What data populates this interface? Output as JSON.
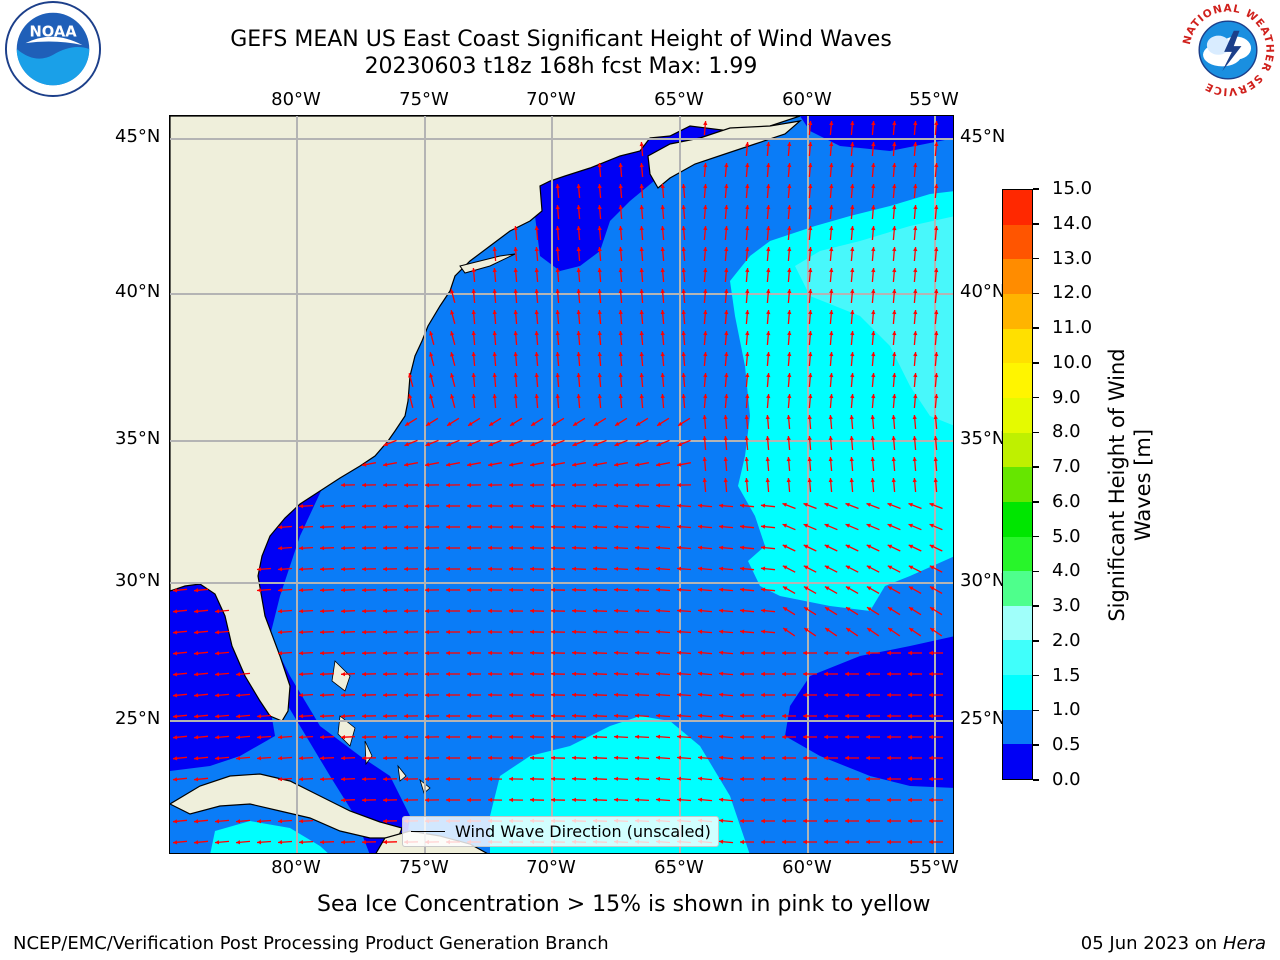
{
  "title_line1": "GEFS MEAN US East Coast Significant Height of Wind Waves",
  "title_line2": "20230603 t18z 168h fcst   Max: 1.99",
  "lon_labels": [
    "80°W",
    "75°W",
    "70°W",
    "65°W",
    "60°W",
    "55°W"
  ],
  "lat_labels": [
    "45°N",
    "40°N",
    "35°N",
    "30°N",
    "25°N"
  ],
  "colorbar": {
    "label": "Significant Height of Wind Waves [m]",
    "ticks": [
      "0.0",
      "0.5",
      "1.0",
      "1.5",
      "2.0",
      "3.0",
      "4.0",
      "5.0",
      "6.0",
      "7.0",
      "8.0",
      "9.0",
      "10.0",
      "11.0",
      "12.0",
      "13.0",
      "14.0",
      "15.0"
    ],
    "colors": [
      "#0000f5",
      "#0a7cf7",
      "#00ffff",
      "#40fffb",
      "#a0fffa",
      "#4eff8c",
      "#28f52a",
      "#00e600",
      "#66e600",
      "#bff000",
      "#e5fa00",
      "#fff500",
      "#ffe000",
      "#ffb400",
      "#ff8c00",
      "#ff5500",
      "#ff2800",
      "#ff0000"
    ]
  },
  "legend_label": "Wind Wave Direction (unscaled)",
  "note": "Sea Ice Concentration > 15% is shown in pink to yellow",
  "footer_left": "NCEP/EMC/Verification Post Processing Product Generation Branch",
  "footer_right_date": "05 Jun 2023 on",
  "footer_right_machine": "Hera",
  "logo_left_text": "NOAA",
  "logo_right_text": "NATIONAL WEATHER SERVICE"
}
